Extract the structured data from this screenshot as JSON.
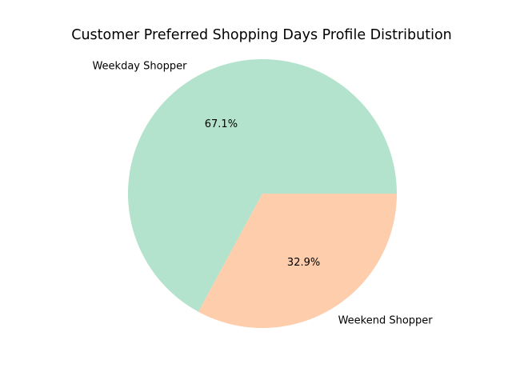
{
  "chart_data": {
    "type": "pie",
    "title": "Customer Preferred Shopping Days Profile Distribution",
    "categories": [
      "Weekday Shopper",
      "Weekend Shopper"
    ],
    "values": [
      67.1,
      32.9
    ],
    "value_labels": [
      "67.1%",
      "32.9%"
    ],
    "colors": [
      "#b3e2cd",
      "#fdcdac"
    ],
    "start_angle_deg": 0,
    "direction": "counterclockwise",
    "legend": "none"
  }
}
